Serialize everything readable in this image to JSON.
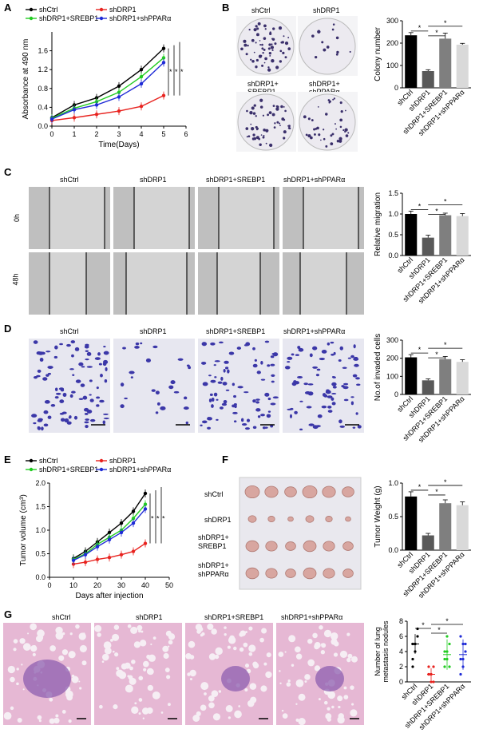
{
  "panel_letters": {
    "A": "A",
    "B": "B",
    "C": "C",
    "D": "D",
    "E": "E",
    "F": "F",
    "G": "G"
  },
  "groups": [
    "shCtrl",
    "shDRP1",
    "shDRP1+SREBP1",
    "shDRP1+shPPARα"
  ],
  "colors": {
    "shCtrl": "#000000",
    "shDRP1": "#e8231f",
    "srebp": "#22cc22",
    "ppar": "#1f2bd6",
    "bar1": "#000000",
    "bar2": "#595959",
    "bar3": "#7f7f7f",
    "bar4": "#d9d9d9"
  },
  "panel_b": {
    "labels": [
      "shCtrl",
      "shDRP1",
      "shDRP1+",
      "SREBP1",
      "shDRP1+",
      "shPPARα"
    ]
  },
  "panel_c": {
    "col_labels": [
      "shCtrl",
      "shDRP1",
      "shDRP1+SREBP1",
      "shDRP1+shPPARα"
    ],
    "row_labels": [
      "0h",
      "48h"
    ]
  },
  "panel_d": {
    "col_labels": [
      "shCtrl",
      "shDRP1",
      "shDRP1+SREBP1",
      "shDRP1+shPPARα"
    ]
  },
  "panel_f": {
    "row_labels": [
      "shCtrl",
      "shDRP1",
      "shDRP1+",
      "SREBP1",
      "shDRP1+",
      "shPPARα"
    ]
  },
  "panel_g": {
    "col_labels": [
      "shCtrl",
      "shDRP1",
      "shDRP1+SREBP1",
      "shDRP1+shPPARα"
    ]
  },
  "chart_data": [
    {
      "id": "A",
      "type": "line",
      "legend": [
        "shCtrl",
        "shDRP1",
        "shDRP1+SREBP1",
        "shDRP1+shPPARα"
      ],
      "xlabel": "Time(Days)",
      "ylabel": "Absorbance at 490 nm",
      "xticks": [
        "0",
        "1",
        "2",
        "3",
        "4",
        "5",
        "6"
      ],
      "yticks": [
        "0.0",
        "0.4",
        "0.8",
        "1.2",
        "1.6"
      ],
      "xlim": [
        0,
        6
      ],
      "ylim": [
        0,
        2.0
      ],
      "x": [
        0,
        1,
        2,
        3,
        4,
        5
      ],
      "series": [
        {
          "name": "shCtrl",
          "values": [
            0.18,
            0.45,
            0.6,
            0.85,
            1.2,
            1.65
          ]
        },
        {
          "name": "shDRP1",
          "values": [
            0.12,
            0.18,
            0.25,
            0.32,
            0.42,
            0.65
          ]
        },
        {
          "name": "shDRP1+SREBP1",
          "values": [
            0.17,
            0.38,
            0.52,
            0.72,
            1.05,
            1.45
          ]
        },
        {
          "name": "shDRP1+shPPARα",
          "values": [
            0.15,
            0.35,
            0.45,
            0.62,
            0.9,
            1.35
          ]
        }
      ],
      "sig": [
        "*",
        "*",
        "*"
      ]
    },
    {
      "id": "B",
      "type": "bar",
      "categories": [
        "shCtrl",
        "shDRP1",
        "shDRP1+SREBP1",
        "shDRP1+shPPARα"
      ],
      "values": [
        235,
        75,
        220,
        193
      ],
      "errors": [
        12,
        6,
        25,
        6
      ],
      "ylabel": "Colony number",
      "yticks": [
        "0",
        "100",
        "200",
        "300"
      ],
      "ylim": [
        0,
        300
      ],
      "sig": [
        "*",
        "*",
        "*"
      ]
    },
    {
      "id": "C",
      "type": "bar",
      "categories": [
        "shCtrl",
        "shDRP1",
        "shDRP1+SREBP1",
        "shDRP1+shPPARα"
      ],
      "values": [
        1.0,
        0.43,
        0.97,
        0.95
      ],
      "errors": [
        0.07,
        0.06,
        0.05,
        0.06
      ],
      "ylabel": "Relative migration",
      "yticks": [
        "0.0",
        "0.5",
        "1.0",
        "1.5"
      ],
      "ylim": [
        0,
        1.5
      ],
      "sig": [
        "*",
        "*",
        "*"
      ]
    },
    {
      "id": "D",
      "type": "bar",
      "categories": [
        "shCtrl",
        "shDRP1",
        "shDRP1+SREBP1",
        "shDRP1+shPPARα"
      ],
      "values": [
        205,
        78,
        195,
        180
      ],
      "errors": [
        15,
        8,
        15,
        12
      ],
      "ylabel": "No.of invaded cells",
      "yticks": [
        "0",
        "100",
        "200",
        "300"
      ],
      "ylim": [
        0,
        300
      ],
      "sig": [
        "*",
        "*",
        "*"
      ]
    },
    {
      "id": "E",
      "type": "line",
      "legend": [
        "shCtrl",
        "shDRP1",
        "shDRP1+SREBP1",
        "shDRP1+shPPARα"
      ],
      "xlabel": "Days after injection",
      "ylabel": "Tumor volume (cm³)",
      "xticks": [
        "0",
        "10",
        "20",
        "30",
        "40",
        "50"
      ],
      "yticks": [
        "0.0",
        "0.5",
        "1.0",
        "1.5",
        "2.0"
      ],
      "xlim": [
        0,
        50
      ],
      "ylim": [
        0,
        2.0
      ],
      "x": [
        10,
        15,
        20,
        25,
        30,
        35,
        40
      ],
      "series": [
        {
          "name": "shCtrl",
          "values": [
            0.4,
            0.55,
            0.75,
            0.95,
            1.15,
            1.4,
            1.78
          ]
        },
        {
          "name": "shDRP1",
          "values": [
            0.28,
            0.32,
            0.38,
            0.42,
            0.48,
            0.55,
            0.72
          ]
        },
        {
          "name": "shDRP1+SREBP1",
          "values": [
            0.38,
            0.5,
            0.7,
            0.85,
            1.0,
            1.25,
            1.55
          ]
        },
        {
          "name": "shDRP1+shPPARα",
          "values": [
            0.36,
            0.48,
            0.65,
            0.8,
            0.95,
            1.15,
            1.45
          ]
        }
      ],
      "sig": [
        "*",
        "*",
        "*"
      ]
    },
    {
      "id": "F",
      "type": "bar",
      "categories": [
        "shCtrl",
        "shDRP1",
        "shDRP1+SREBP1",
        "shDRP1+shPPARα"
      ],
      "values": [
        0.8,
        0.22,
        0.7,
        0.67
      ],
      "errors": [
        0.07,
        0.03,
        0.05,
        0.05
      ],
      "ylabel": "Tumor Weight (g)",
      "yticks": [
        "0.0",
        "0.5",
        "1.0"
      ],
      "ylim": [
        0,
        1.0
      ],
      "sig": [
        "*",
        "*",
        "*"
      ]
    },
    {
      "id": "G",
      "type": "scatter",
      "categories": [
        "shCtrl",
        "shDRP1",
        "shDRP1+SREBP1",
        "shDRP1+shPPARα"
      ],
      "points": [
        [
          5,
          4,
          6,
          3,
          5,
          7,
          2,
          5
        ],
        [
          1,
          0,
          2,
          1,
          1,
          0,
          2,
          1
        ],
        [
          2,
          4,
          5,
          3,
          6,
          2,
          4,
          3
        ],
        [
          1,
          3,
          5,
          6,
          2,
          4,
          3,
          5
        ]
      ],
      "means": [
        5,
        1,
        3.6,
        3.6
      ],
      "sds": [
        1.3,
        0.8,
        2.0,
        2.0
      ],
      "ylabel": "Number of lung metastasis nodules",
      "ylabel_lines": [
        "Number of lung",
        "metastasis nodules"
      ],
      "yticks": [
        "0",
        "2",
        "4",
        "6",
        "8"
      ],
      "ylim": [
        0,
        8
      ],
      "sig": [
        "*",
        "*",
        "*"
      ]
    }
  ]
}
